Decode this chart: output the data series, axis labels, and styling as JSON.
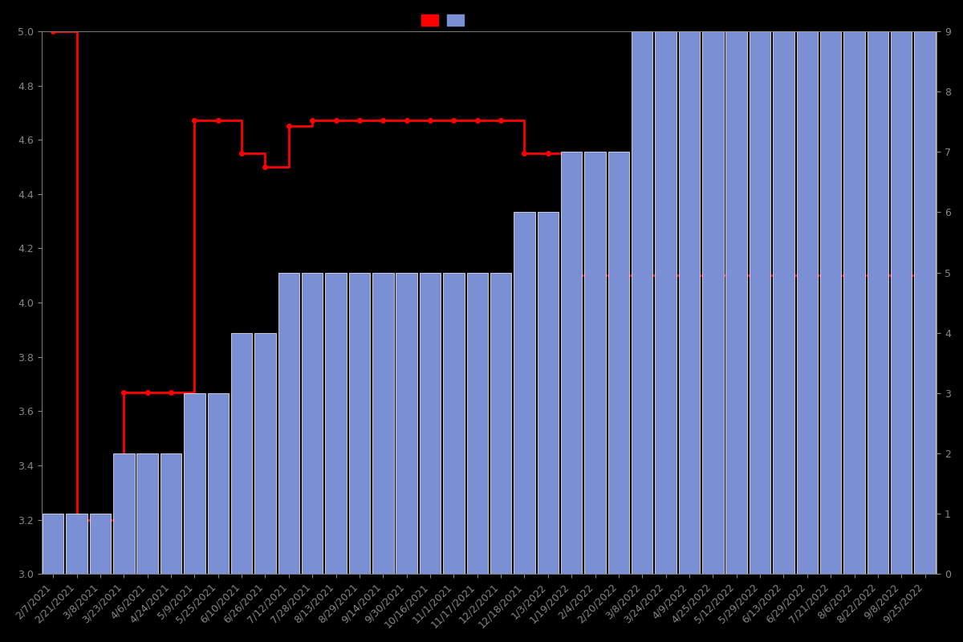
{
  "background_color": "#000000",
  "bar_color": "#7B8FD4",
  "bar_edge_color": "#FFFFFF",
  "line_color": "#FF0000",
  "left_ylim": [
    3.0,
    5.0
  ],
  "right_ylim": [
    0,
    9
  ],
  "left_yticks": [
    3.0,
    3.2,
    3.4,
    3.6,
    3.8,
    4.0,
    4.2,
    4.4,
    4.6,
    4.8,
    5.0
  ],
  "right_yticks": [
    0,
    1,
    2,
    3,
    4,
    5,
    6,
    7,
    8,
    9
  ],
  "dates": [
    "2/7/2021",
    "2/21/2021",
    "3/8/2021",
    "3/23/2021",
    "4/6/2021",
    "4/24/2021",
    "5/9/2021",
    "5/25/2021",
    "6/10/2021",
    "6/26/2021",
    "7/12/2021",
    "7/28/2021",
    "8/13/2021",
    "8/29/2021",
    "9/14/2021",
    "9/30/2021",
    "10/16/2021",
    "11/1/2021",
    "11/17/2021",
    "12/2/2021",
    "12/18/2021",
    "1/3/2022",
    "1/19/2022",
    "2/4/2022",
    "2/20/2022",
    "3/8/2022",
    "3/24/2022",
    "4/9/2022",
    "4/25/2022",
    "5/12/2022",
    "5/29/2022",
    "6/13/2022",
    "6/29/2022",
    "7/21/2022",
    "8/6/2022",
    "8/22/2022",
    "9/8/2022",
    "9/25/2022"
  ],
  "bar_heights": [
    1,
    1,
    1,
    2,
    2,
    2,
    3,
    3,
    4,
    4,
    5,
    5,
    5,
    5,
    5,
    5,
    5,
    5,
    5,
    5,
    6,
    6,
    7,
    7,
    7,
    9,
    9,
    9,
    9,
    9,
    9,
    9,
    9,
    9,
    9,
    9,
    9,
    9
  ],
  "line_values": [
    5.0,
    3.2,
    3.2,
    3.67,
    3.67,
    3.67,
    4.67,
    4.67,
    4.55,
    4.5,
    4.65,
    4.67,
    4.67,
    4.67,
    4.67,
    4.67,
    4.67,
    4.67,
    4.67,
    4.67,
    4.55,
    4.55,
    4.1,
    4.1,
    4.1,
    4.1,
    4.1,
    4.1,
    4.1,
    4.1,
    4.1,
    4.1,
    4.1,
    4.1,
    4.1,
    4.1,
    4.1,
    4.1
  ],
  "tick_fontsize": 9,
  "tick_color": "#888888",
  "spine_color": "#888888"
}
